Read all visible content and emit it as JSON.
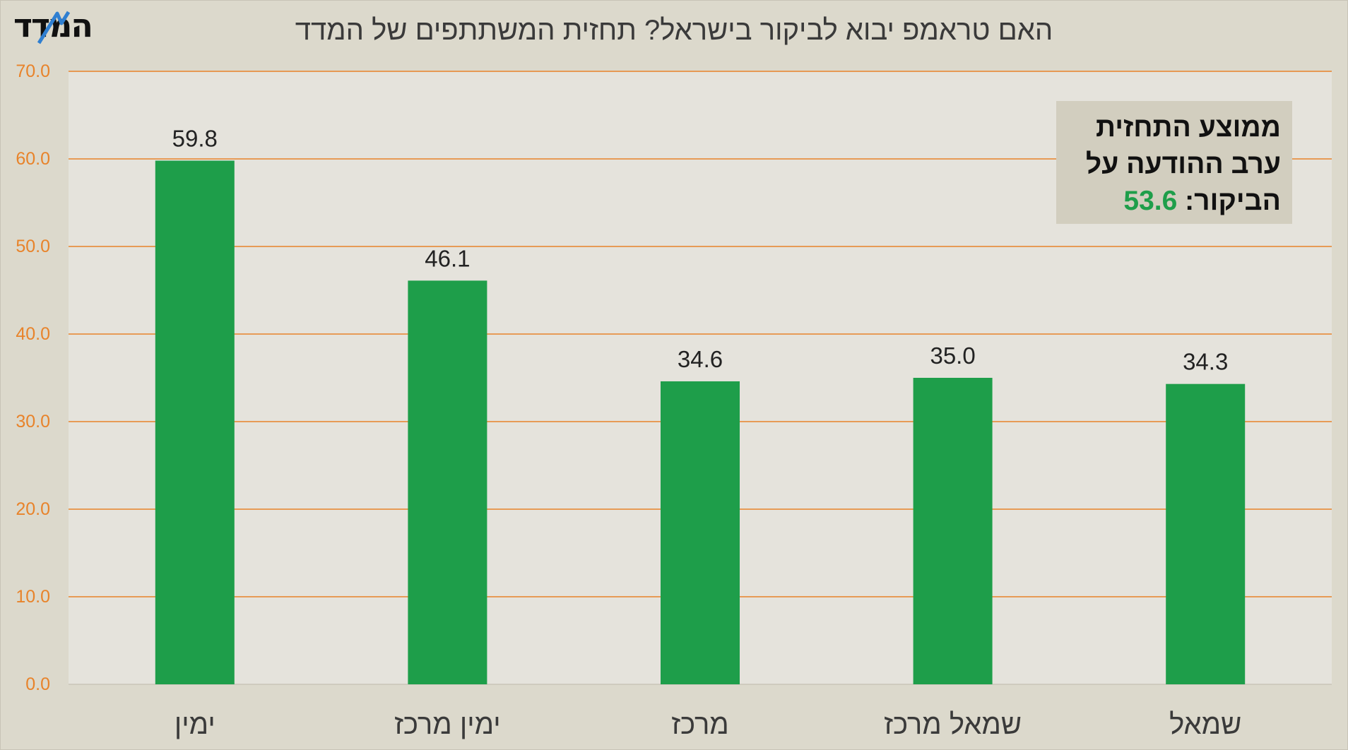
{
  "logo": {
    "text": "המדד"
  },
  "title": "האם טראמפ יבוא לביקור בישראל? תחזית המשתתפים של המדד",
  "callout": {
    "line1": "ממוצע התחזית",
    "line2": "ערב ההודעה על",
    "line3_label": "הביקור:",
    "value": "53.6"
  },
  "colors": {
    "bar": "#1e9e4a",
    "grid": "#e8832a",
    "tick_text": "#e8832a",
    "plot_bg": "#e5e3dc",
    "frame_bg": "#dcd9cc",
    "value_text": "#222222"
  },
  "chart_data": {
    "type": "bar",
    "title": "האם טראמפ יבוא לביקור בישראל? תחזית המשתתפים של המדד",
    "categories": [
      "ימין",
      "ימין מרכז",
      "מרכז",
      "שמאל מרכז",
      "שמאל"
    ],
    "values": [
      59.8,
      46.1,
      34.6,
      35.0,
      34.3
    ],
    "value_labels": [
      "59.8",
      "46.1",
      "34.6",
      "35.0",
      "34.3"
    ],
    "ylim": [
      0,
      70
    ],
    "yticks": [
      "0.0",
      "10.0",
      "20.0",
      "30.0",
      "40.0",
      "50.0",
      "60.0",
      "70.0"
    ],
    "xlabel": "",
    "ylabel": "",
    "grid": true,
    "legend": "none",
    "annotation": "ממוצע התחזית ערב ההודעה על הביקור: 53.6"
  }
}
